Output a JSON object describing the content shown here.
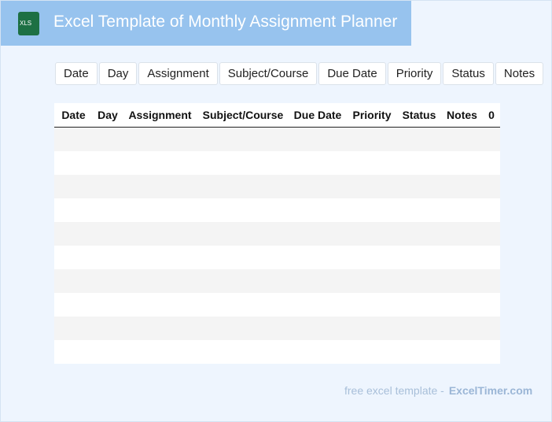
{
  "header": {
    "icon_label": "XLS",
    "title": "Excel Template of Monthly Assignment Planner"
  },
  "buttons": [
    "Date",
    "Day",
    "Assignment",
    "Subject/Course",
    "Due Date",
    "Priority",
    "Status",
    "Notes"
  ],
  "table": {
    "columns": [
      "Date",
      "Day",
      "Assignment",
      "Subject/Course",
      "Due Date",
      "Priority",
      "Status",
      "Notes",
      "0"
    ]
  },
  "footer": {
    "text": "free excel template -",
    "brand": "ExcelTimer.com"
  }
}
